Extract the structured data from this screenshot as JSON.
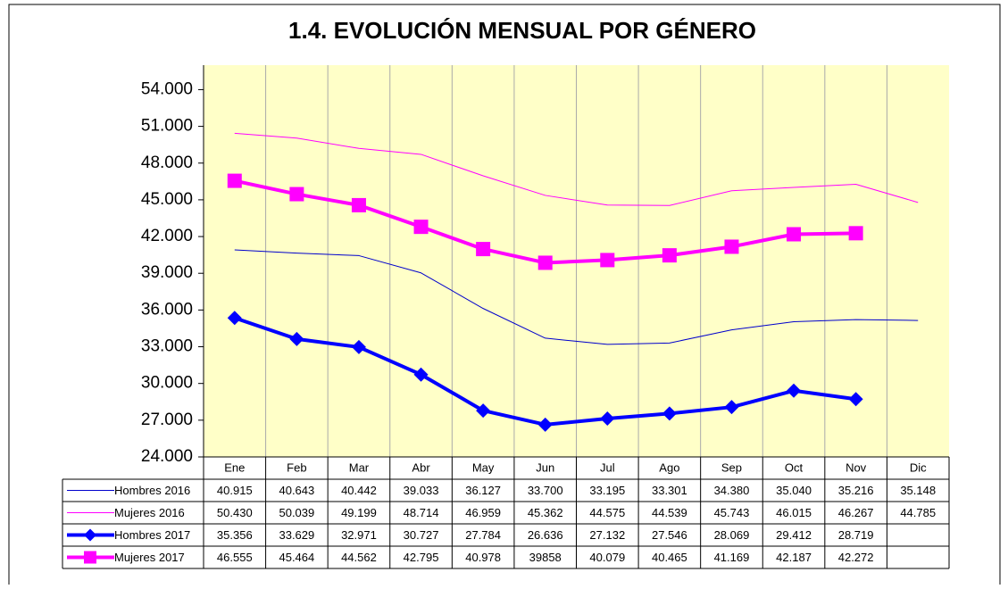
{
  "chart_data": {
    "type": "line",
    "title": "1.4. EVOLUCIÓN MENSUAL POR GÉNERO",
    "categories": [
      "Ene",
      "Feb",
      "Mar",
      "Abr",
      "May",
      "Jun",
      "Jul",
      "Ago",
      "Sep",
      "Oct",
      "Nov",
      "Dic"
    ],
    "ylim": [
      24000,
      56000
    ],
    "yticks": [
      {
        "value": 24000,
        "label": "24.000"
      },
      {
        "value": 27000,
        "label": "27.000"
      },
      {
        "value": 30000,
        "label": "30.000"
      },
      {
        "value": 33000,
        "label": "33.000"
      },
      {
        "value": 36000,
        "label": "36.000"
      },
      {
        "value": 39000,
        "label": "39.000"
      },
      {
        "value": 42000,
        "label": "42.000"
      },
      {
        "value": 45000,
        "label": "45.000"
      },
      {
        "value": 48000,
        "label": "48.000"
      },
      {
        "value": 51000,
        "label": "51.000"
      },
      {
        "value": 54000,
        "label": "54.000"
      }
    ],
    "plot_background": "#ffffc8",
    "series": [
      {
        "name": "Hombres 2016",
        "color": "#0000cc",
        "line_width": 1,
        "marker": "none",
        "values": [
          40915,
          40643,
          40442,
          39033,
          36127,
          33700,
          33195,
          33301,
          34380,
          35040,
          35216,
          35148
        ],
        "value_labels": [
          "40.915",
          "40.643",
          "40.442",
          "39.033",
          "36.127",
          "33.700",
          "33.195",
          "33.301",
          "34.380",
          "35.040",
          "35.216",
          "35.148"
        ]
      },
      {
        "name": "Mujeres 2016",
        "color": "#ff00ff",
        "line_width": 1,
        "marker": "none",
        "values": [
          50430,
          50039,
          49199,
          48714,
          46959,
          45362,
          44575,
          44539,
          45743,
          46015,
          46267,
          44785
        ],
        "value_labels": [
          "50.430",
          "50.039",
          "49.199",
          "48.714",
          "46.959",
          "45.362",
          "44.575",
          "44.539",
          "45.743",
          "46.015",
          "46.267",
          "44.785"
        ]
      },
      {
        "name": "Hombres 2017",
        "color": "#0000ff",
        "line_width": 4,
        "marker": "diamond",
        "values": [
          35356,
          33629,
          32971,
          30727,
          27784,
          26636,
          27132,
          27546,
          28069,
          29412,
          28719,
          null
        ],
        "value_labels": [
          "35.356",
          "33.629",
          "32.971",
          "30.727",
          "27.784",
          "26.636",
          "27.132",
          "27.546",
          "28.069",
          "29.412",
          "28.719",
          null
        ]
      },
      {
        "name": "Mujeres 2017",
        "color": "#ff00ff",
        "line_width": 4,
        "marker": "square",
        "values": [
          46555,
          45464,
          44562,
          42795,
          40978,
          39858,
          40079,
          40465,
          41169,
          42187,
          42272,
          null
        ],
        "value_labels": [
          "46.555",
          "45.464",
          "44.562",
          "42.795",
          "40.978",
          "39858",
          "40.079",
          "40.465",
          "41.169",
          "42.187",
          "42.272",
          null
        ]
      }
    ]
  }
}
